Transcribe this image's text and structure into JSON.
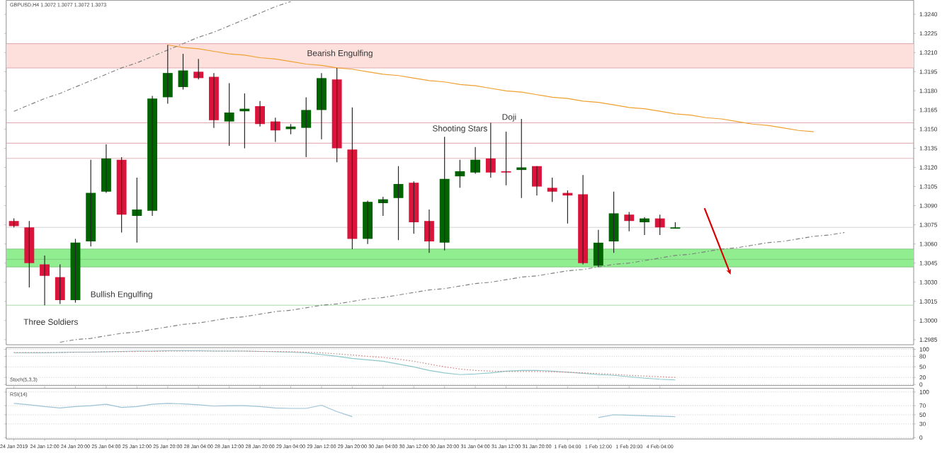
{
  "chart_data": [
    {
      "type": "candlestick",
      "tick_labels": "y",
      "categories": [
        null,
        null,
        null,
        null,
        null,
        null,
        null,
        null,
        null,
        null,
        null,
        null,
        null,
        null,
        null,
        null,
        null,
        null,
        null,
        null,
        null,
        null,
        null,
        null,
        null,
        null,
        null,
        null,
        null,
        null,
        null,
        null,
        null,
        null,
        null,
        null,
        null,
        null,
        null,
        null,
        null,
        null,
        null,
        null,
        null,
        null,
        null,
        null,
        null,
        null,
        null,
        null,
        null,
        null,
        null,
        null,
        null,
        null,
        null
      ],
      "ohlc": [
        [
          1.3078,
          1.308,
          1.3073,
          1.3074
        ],
        [
          1.3073,
          1.3078,
          1.3026,
          1.3045
        ],
        [
          1.3044,
          1.3051,
          1.3012,
          1.3035
        ],
        [
          1.3034,
          1.3044,
          1.3013,
          1.3016
        ],
        [
          1.3016,
          1.3064,
          1.3014,
          1.3061
        ],
        [
          1.3062,
          1.3126,
          1.3058,
          1.31
        ],
        [
          1.3101,
          1.3138,
          1.31,
          1.3127
        ],
        [
          1.3126,
          1.3128,
          1.3069,
          1.3083
        ],
        [
          1.3082,
          1.3112,
          1.3061,
          1.3087
        ],
        [
          1.3086,
          1.3176,
          1.3082,
          1.3174
        ],
        [
          1.3175,
          1.3216,
          1.317,
          1.3194
        ],
        [
          1.3183,
          1.3209,
          1.3181,
          1.3196
        ],
        [
          1.3195,
          1.3205,
          1.3189,
          1.319
        ],
        [
          1.3191,
          1.3194,
          1.3151,
          1.3157
        ],
        [
          1.3156,
          1.3186,
          1.3137,
          1.3163
        ],
        [
          1.3164,
          1.3178,
          1.3135,
          1.3166
        ],
        [
          1.3168,
          1.3172,
          1.3152,
          1.3154
        ],
        [
          1.3156,
          1.3159,
          1.314,
          1.3149
        ],
        [
          1.315,
          1.3154,
          1.3146,
          1.3152
        ],
        [
          1.3151,
          1.3175,
          1.3128,
          1.3165
        ],
        [
          1.3165,
          1.3194,
          1.3142,
          1.319
        ],
        [
          1.3189,
          1.3198,
          1.3124,
          1.3135
        ],
        [
          1.3134,
          1.3167,
          1.3056,
          1.3064
        ],
        [
          1.3064,
          1.3094,
          1.306,
          1.3093
        ],
        [
          1.3092,
          1.3097,
          1.3082,
          1.3095
        ],
        [
          1.3096,
          1.3121,
          1.3063,
          1.3107
        ],
        [
          1.3108,
          1.3109,
          1.3068,
          1.3077
        ],
        [
          1.3078,
          1.3087,
          1.3053,
          1.3062
        ],
        [
          1.3061,
          1.3144,
          1.3055,
          1.3111
        ],
        [
          1.3113,
          1.3126,
          1.3104,
          1.3117
        ],
        [
          1.3116,
          1.3136,
          1.3115,
          1.3126
        ],
        [
          1.3127,
          1.3155,
          1.3112,
          1.3116
        ],
        [
          1.3117,
          1.3148,
          1.3106,
          1.3116
        ],
        [
          1.3118,
          1.3158,
          1.3096,
          1.312
        ],
        [
          1.3121,
          1.3121,
          1.3098,
          1.3105
        ],
        [
          1.3104,
          1.3112,
          1.3093,
          1.3101
        ],
        [
          1.31,
          1.3102,
          1.3076,
          1.3098
        ],
        [
          1.3099,
          1.3114,
          1.3044,
          1.3045
        ],
        [
          1.3043,
          1.3071,
          1.3042,
          1.3061
        ],
        [
          1.3062,
          1.3101,
          1.3053,
          1.3084
        ],
        [
          1.3083,
          1.3085,
          1.307,
          1.3078
        ],
        [
          1.3077,
          1.3081,
          1.3067,
          1.308
        ],
        [
          1.308,
          1.3083,
          1.3067,
          1.3073
        ],
        [
          1.3072,
          1.3077,
          1.3072,
          1.3073
        ],
        null,
        null,
        null,
        null,
        null,
        null,
        null,
        null,
        null,
        null,
        null,
        null,
        null,
        null,
        null
      ],
      "colors": [
        "#dc143c",
        "#dc143c",
        "#dc143c",
        "#dc143c",
        "#006400",
        "#006400",
        "#006400",
        "#dc143c",
        "#006400",
        "#006400",
        "#006400",
        "#006400",
        "#dc143c",
        "#dc143c",
        "#006400",
        "#006400",
        "#dc143c",
        "#dc143c",
        "#006400",
        "#006400",
        "#006400",
        "#dc143c",
        "#dc143c",
        "#006400",
        "#006400",
        "#006400",
        "#dc143c",
        "#dc143c",
        "#006400",
        "#006400",
        "#006400",
        "#dc143c",
        "#dc143c",
        "#006400",
        "#dc143c",
        "#dc143c",
        "#dc143c",
        "#dc143c",
        "#006400",
        "#006400",
        "#dc143c",
        "#006400",
        "#dc143c",
        "#006400",
        null,
        null,
        null,
        null,
        null,
        null,
        null,
        null,
        null,
        null,
        null,
        null,
        null,
        null,
        null
      ],
      "series": [
        {
          "type": "line",
          "color": "#f0a030",
          "values": [
            null,
            null,
            null,
            null,
            null,
            null,
            null,
            null,
            null,
            null,
            1.3216,
            1.3214,
            1.3213,
            1.3211,
            1.3209,
            1.3208,
            1.3206,
            1.3205,
            1.3203,
            1.3201,
            1.32,
            1.3198,
            1.3197,
            1.3195,
            1.3193,
            1.3192,
            1.319,
            1.3188,
            1.3187,
            1.3185,
            1.3184,
            1.3182,
            1.318,
            1.3179,
            1.3177,
            1.3175,
            1.3174,
            1.3172,
            1.3171,
            1.3169,
            1.3167,
            1.3166,
            1.3164,
            1.3162,
            1.3161,
            1.3159,
            1.3158,
            1.3156,
            1.3154,
            1.3153,
            1.3151,
            1.3149,
            1.3148,
            null,
            null,
            null,
            null,
            null,
            null
          ]
        },
        {
          "type": "line",
          "color": "#808080",
          "line_style": "dashed",
          "values": [
            null,
            null,
            null,
            1.2983,
            1.2985,
            1.2986,
            1.2988,
            1.299,
            1.2991,
            1.2993,
            1.2995,
            1.2997,
            1.2998,
            1.3,
            1.3002,
            1.3003,
            1.3005,
            1.3007,
            1.3008,
            1.301,
            1.3012,
            1.3013,
            1.3015,
            1.3017,
            1.3018,
            1.302,
            1.3022,
            1.3024,
            1.3025,
            1.3027,
            1.3029,
            1.303,
            1.3032,
            1.3034,
            1.3035,
            1.3037,
            1.3039,
            1.304,
            1.3042,
            1.3044,
            1.3045,
            1.3047,
            1.3049,
            1.3051,
            1.3052,
            1.3054,
            1.3056,
            1.3057,
            1.3059,
            1.3061,
            1.3062,
            1.3064,
            1.3066,
            1.3067,
            1.3069,
            null,
            null,
            null,
            null
          ]
        },
        {
          "type": "line",
          "color": "#808080",
          "line_style": "dashed",
          "values": [
            1.3164,
            1.3169,
            1.3174,
            1.3178,
            1.3183,
            1.3188,
            1.3193,
            1.3198,
            1.3202,
            1.3207,
            1.3212,
            1.3217,
            1.3222,
            1.3226,
            1.3231,
            1.3236,
            1.3241,
            1.3246,
            1.325,
            null,
            null,
            null,
            null,
            null,
            null,
            null,
            null,
            null,
            null,
            null,
            null,
            null,
            null,
            null,
            null,
            null,
            null,
            null,
            null,
            null,
            null,
            null,
            null,
            null,
            null,
            null,
            null,
            null,
            null,
            null,
            null,
            null,
            null,
            null,
            null,
            null,
            null,
            null,
            null
          ]
        }
      ],
      "ylim": [
        1.2981,
        1.3251
      ],
      "yticks": [
        {
          "value": 1.2985,
          "label": "1.2985"
        },
        {
          "value": 1.3,
          "label": "1.3000"
        },
        {
          "value": 1.3015,
          "label": "1.3015"
        },
        {
          "value": 1.303,
          "label": "1.3030"
        },
        {
          "value": 1.3045,
          "label": "1.3045"
        },
        {
          "value": 1.306,
          "label": "1.3060"
        },
        {
          "value": 1.3075,
          "label": "1.3075"
        },
        {
          "value": 1.309,
          "label": "1.3090"
        },
        {
          "value": 1.3105,
          "label": "1.3105"
        },
        {
          "value": 1.312,
          "label": "1.3120"
        },
        {
          "value": 1.3135,
          "label": "1.3135"
        },
        {
          "value": 1.315,
          "label": "1.3150"
        },
        {
          "value": 1.3165,
          "label": "1.3165"
        },
        {
          "value": 1.318,
          "label": "1.3180"
        },
        {
          "value": 1.3195,
          "label": "1.3195"
        },
        {
          "value": 1.321,
          "label": "1.3210"
        },
        {
          "value": 1.3225,
          "label": "1.3225"
        },
        {
          "value": 1.324,
          "label": "1.3240"
        }
      ],
      "bands": [
        {
          "axis": "y",
          "from": 1.3198,
          "to": 1.3217,
          "color": "#fde0dc"
        },
        {
          "axis": "y",
          "from": 1.3042,
          "to": 1.3056,
          "color": "#90ee90"
        }
      ],
      "ref_lines": [
        {
          "axis": "y",
          "value": 1.3217,
          "color": "#e0a0a8"
        },
        {
          "axis": "y",
          "value": 1.3198,
          "color": "#e0a0a8"
        },
        {
          "axis": "y",
          "value": 1.3155,
          "color": "#e0a0a8"
        },
        {
          "axis": "y",
          "value": 1.3139,
          "color": "#e0a0a8"
        },
        {
          "axis": "y",
          "value": 1.3127,
          "color": "#e0a0a8"
        },
        {
          "axis": "y",
          "value": 1.3073,
          "color": "#c8c8c8"
        },
        {
          "axis": "y",
          "value": 1.3056,
          "color": "#7cc87c"
        },
        {
          "axis": "y",
          "value": 1.3048,
          "color": "#7cc87c"
        },
        {
          "axis": "y",
          "value": 1.3042,
          "color": "#7cc87c"
        },
        {
          "axis": "y",
          "value": 1.3012,
          "color": "#a8d8a8"
        }
      ],
      "annotations": [
        "GBPUSD,H4  1.3072 1.3077 1.3072 1.3073",
        "Bearish Engulfing",
        "Shooting Stars",
        "Doji",
        "Bullish Engulfing",
        "Three Soldiers"
      ]
    },
    {
      "type": "line",
      "title": "Stoch(5,3,3)",
      "tick_labels": "y",
      "grid": "y",
      "categories": [
        null,
        null,
        null,
        null,
        null,
        null,
        null,
        null,
        null,
        null,
        null,
        null,
        null,
        null,
        null,
        null,
        null,
        null,
        null,
        null,
        null,
        null,
        null,
        null,
        null,
        null,
        null,
        null,
        null,
        null,
        null,
        null,
        null,
        null,
        null,
        null,
        null,
        null,
        null,
        null,
        null,
        null,
        null,
        null,
        null,
        null,
        null,
        null,
        null,
        null,
        null,
        null,
        null,
        null,
        null,
        null,
        null,
        null,
        null
      ],
      "series": [
        {
          "color": "#8ec7cc",
          "values": [
            90,
            90,
            90,
            91,
            92,
            92,
            93,
            94,
            95,
            95,
            96,
            96,
            96,
            95,
            95,
            95,
            94,
            93,
            92,
            90,
            85,
            80,
            74,
            70,
            66,
            58,
            50,
            40,
            33,
            28,
            30,
            33,
            38,
            40,
            40,
            38,
            35,
            32,
            28,
            26,
            22,
            18,
            15,
            13,
            null,
            null,
            null,
            null,
            null,
            null,
            null,
            null,
            null,
            null,
            null,
            null,
            null,
            null,
            null
          ]
        },
        {
          "color": "#d08080",
          "line_style": "dotted",
          "values": [
            91,
            91,
            91,
            91,
            92,
            92,
            93,
            93,
            94,
            94,
            95,
            95,
            95,
            95,
            95,
            95,
            94,
            94,
            93,
            92,
            90,
            87,
            84,
            80,
            77,
            72,
            66,
            58,
            50,
            44,
            40,
            38,
            37,
            37,
            37,
            36,
            35,
            33,
            31,
            29,
            26,
            24,
            22,
            20,
            null,
            null,
            null,
            null,
            null,
            null,
            null,
            null,
            null,
            null,
            null,
            null,
            null,
            null,
            null
          ]
        }
      ],
      "ylim": [
        -3,
        105
      ],
      "yticks": [
        0,
        20,
        50,
        80,
        100
      ]
    },
    {
      "type": "line",
      "title": "RSI(14)",
      "grid": "y",
      "categories": [
        "24 Jan 2019",
        null,
        "24 Jan 12:00",
        null,
        "24 Jan 20:00",
        null,
        "25 Jan 04:00",
        null,
        "25 Jan 12:00",
        null,
        "25 Jan 20:00",
        null,
        "28 Jan 04:00",
        null,
        "28 Jan 12:00",
        null,
        "28 Jan 20:00",
        null,
        "29 Jan 04:00",
        null,
        "29 Jan 12:00",
        null,
        "29 Jan 20:00",
        null,
        "30 Jan 04:00",
        null,
        "30 Jan 12:00",
        null,
        "30 Jan 20:00",
        null,
        "31 Jan 04:00",
        null,
        "31 Jan 12:00",
        null,
        "31 Jan 20:00",
        null,
        "1 Feb 04:00",
        null,
        "1 Feb 12:00",
        null,
        "1 Feb 20:00",
        null,
        "4 Feb 04:00",
        null,
        null,
        null,
        null,
        null,
        null,
        null,
        null,
        null,
        null,
        null,
        null,
        null,
        null,
        null,
        null
      ],
      "series": [
        {
          "color": "#9ec3d6",
          "values": [
            75,
            72,
            68,
            65,
            68,
            70,
            73,
            66,
            68,
            73,
            75,
            74,
            72,
            69,
            70,
            70,
            68,
            65,
            64,
            64,
            71,
            57,
            46,
            null,
            null,
            null,
            null,
            null,
            null,
            null,
            null,
            null,
            null,
            null,
            null,
            null,
            null,
            null,
            44,
            50,
            49,
            48,
            47,
            46,
            null,
            null,
            null,
            null,
            null,
            null,
            null,
            null,
            null,
            null,
            null,
            null,
            null,
            null,
            null
          ]
        }
      ],
      "ylim": [
        -3,
        108
      ],
      "yticks": [
        0,
        30,
        50,
        70,
        100
      ]
    }
  ]
}
